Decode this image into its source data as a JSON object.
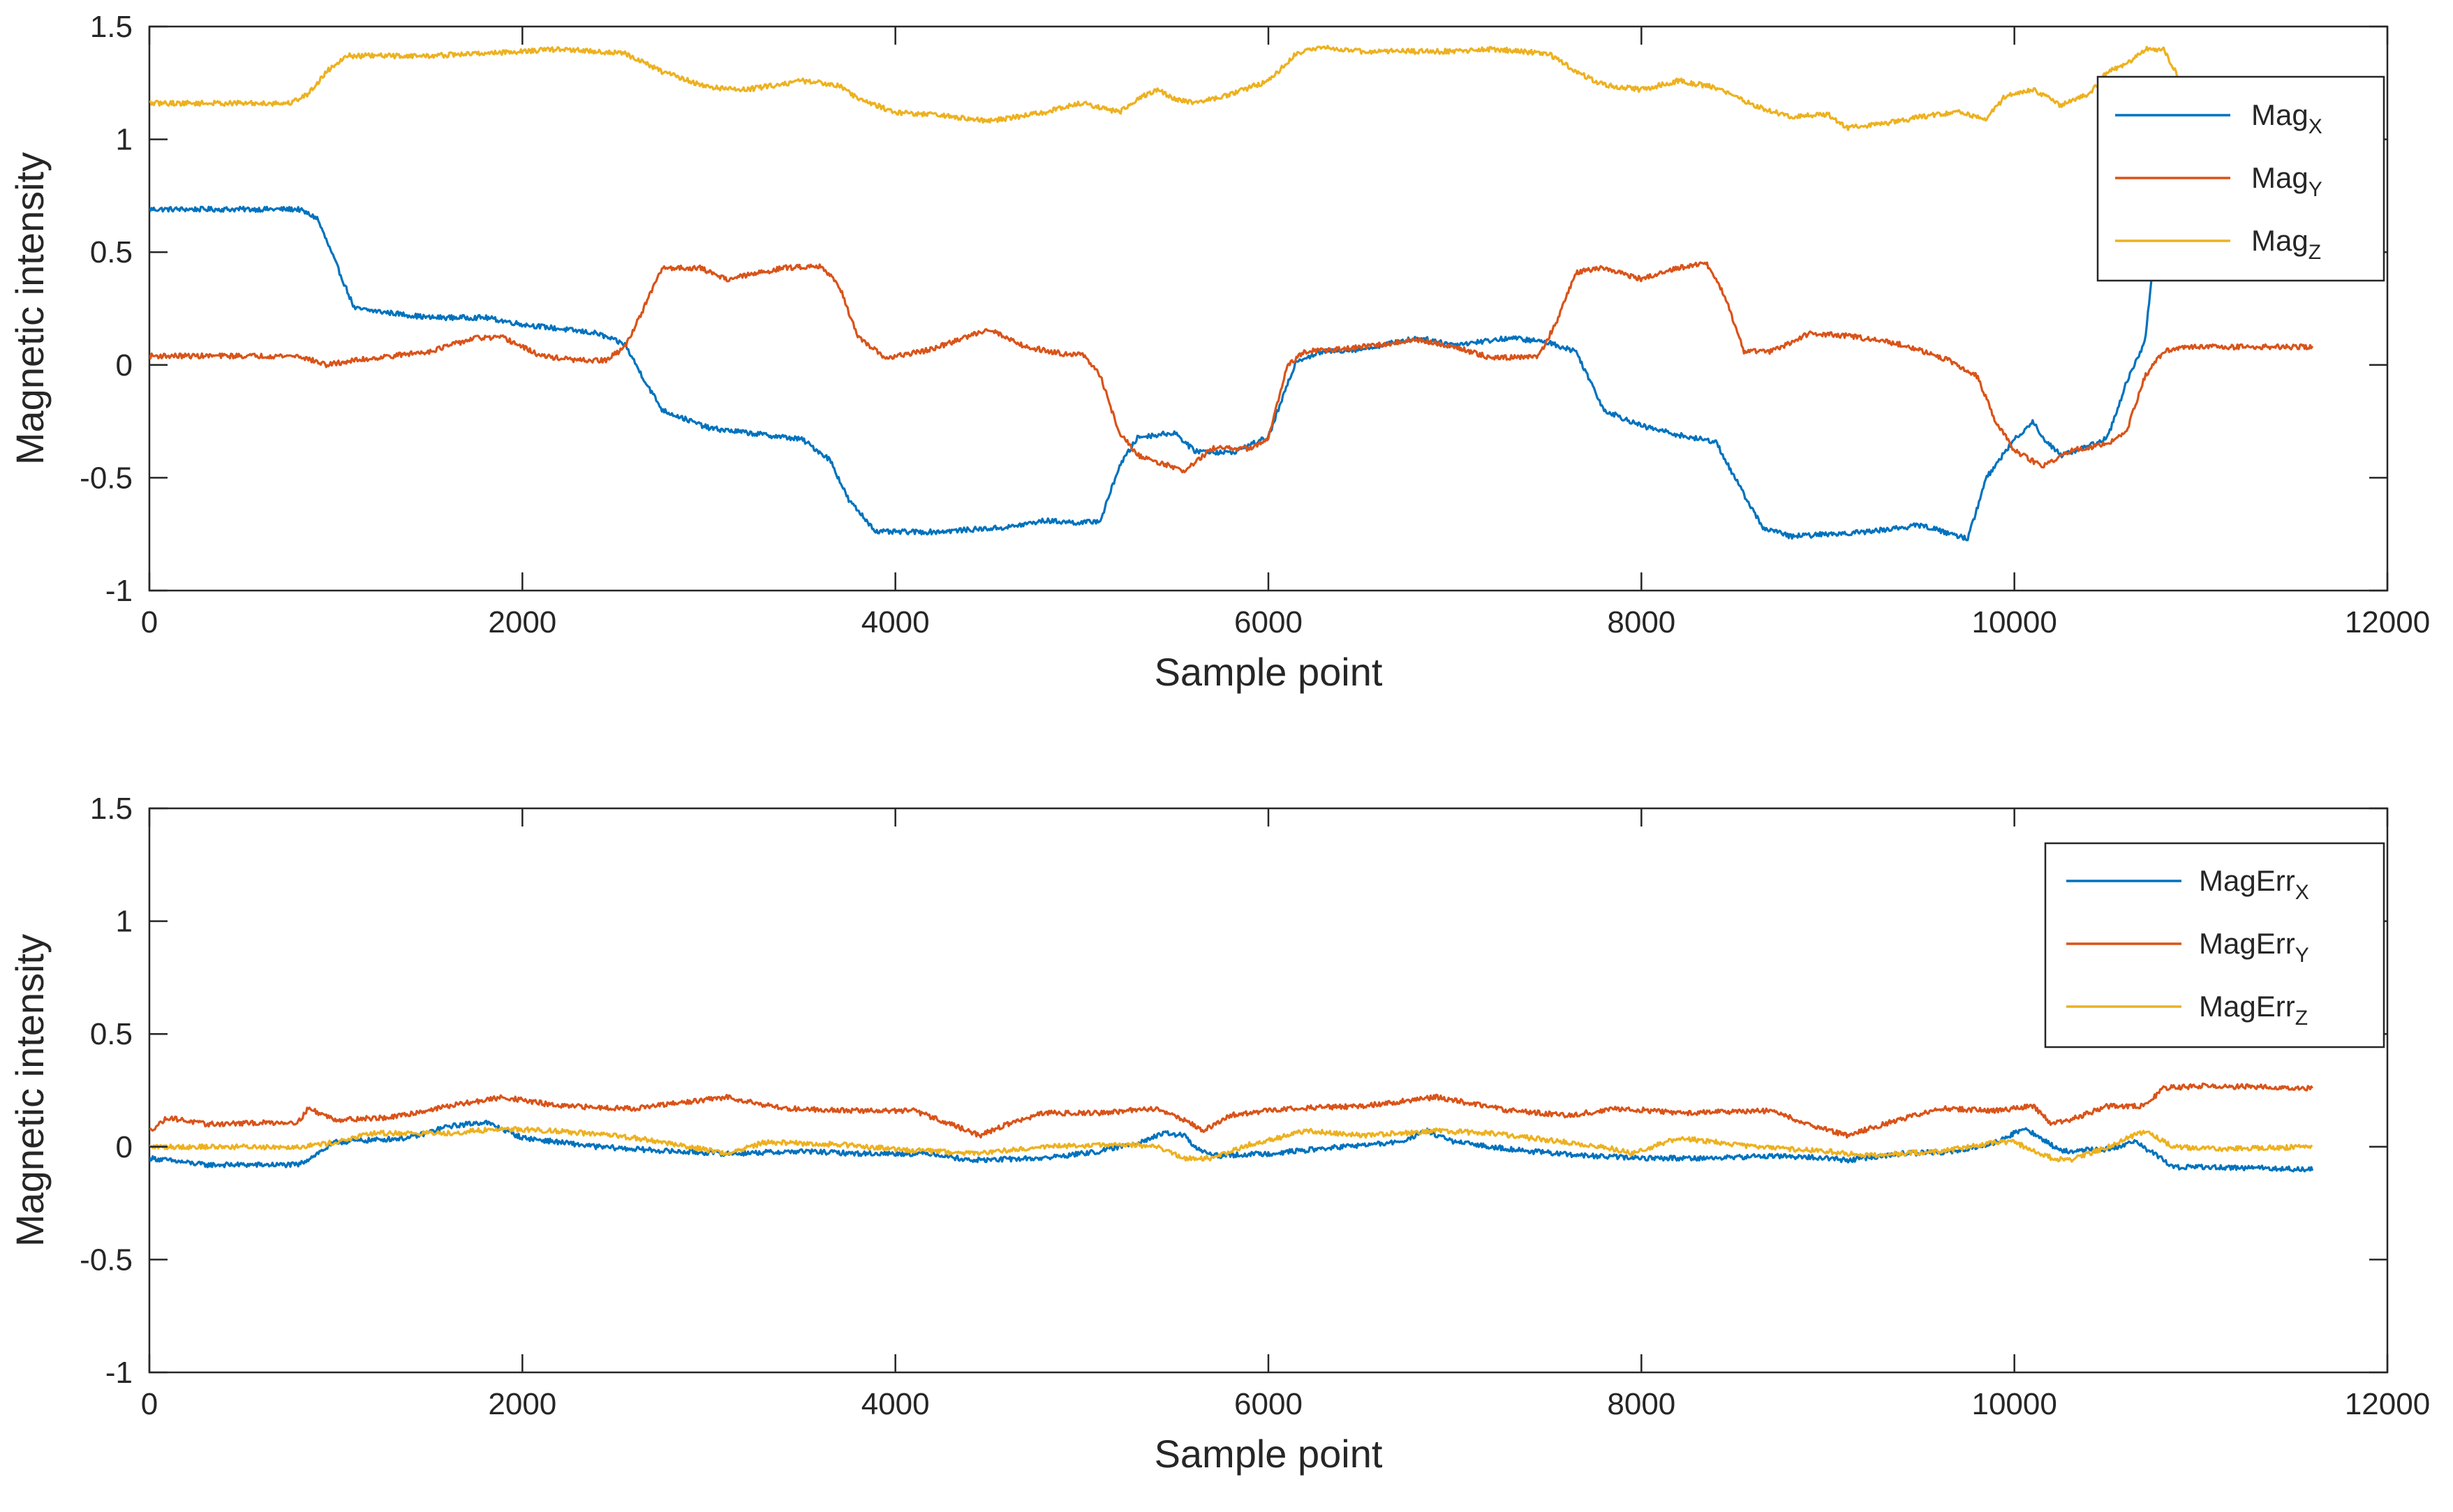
{
  "chart_data": [
    {
      "type": "line",
      "title": "",
      "xlabel": "Sample point",
      "ylabel": "Magnetic intensity",
      "xlim": [
        0,
        12000
      ],
      "ylim": [
        -1,
        1.5
      ],
      "xticks": [
        0,
        2000,
        4000,
        6000,
        8000,
        10000,
        12000
      ],
      "xtick_labels": [
        "0",
        "2000",
        "4000",
        "6000",
        "8000",
        "10000",
        "12000"
      ],
      "yticks": [
        -1,
        -0.5,
        0,
        0.5,
        1,
        1.5
      ],
      "ytick_labels": [
        "-1",
        "-0.5",
        "0",
        "0.5",
        "1",
        "1.5"
      ],
      "grid": false,
      "legend_position": "top-right",
      "series": [
        {
          "name": "MagX",
          "label_base": "Mag",
          "label_sub": "X",
          "color": "#0072BD",
          "x": [
            0,
            800,
            900,
            1000,
            1100,
            1500,
            1800,
            2000,
            2400,
            2550,
            2650,
            2750,
            3000,
            3200,
            3500,
            3650,
            3750,
            3900,
            4200,
            4600,
            4800,
            5000,
            5100,
            5200,
            5300,
            5500,
            5600,
            5800,
            6000,
            6150,
            6300,
            6500,
            6800,
            7000,
            7300,
            7500,
            7650,
            7800,
            8000,
            8250,
            8400,
            8500,
            8650,
            8800,
            9000,
            9200,
            9500,
            9750,
            9850,
            10000,
            10100,
            10150,
            10250,
            10400,
            10500,
            10600,
            10700,
            10750
          ],
          "y": [
            0.69,
            0.69,
            0.65,
            0.45,
            0.25,
            0.21,
            0.21,
            0.18,
            0.14,
            0.09,
            -0.06,
            -0.2,
            -0.28,
            -0.3,
            -0.33,
            -0.42,
            -0.6,
            -0.74,
            -0.74,
            -0.72,
            -0.69,
            -0.7,
            -0.69,
            -0.45,
            -0.32,
            -0.3,
            -0.38,
            -0.39,
            -0.32,
            0.02,
            0.06,
            0.07,
            0.12,
            0.09,
            0.12,
            0.1,
            0.06,
            -0.2,
            -0.27,
            -0.32,
            -0.34,
            -0.5,
            -0.72,
            -0.76,
            -0.75,
            -0.74,
            -0.71,
            -0.77,
            -0.5,
            -0.33,
            -0.25,
            -0.32,
            -0.4,
            -0.36,
            -0.32,
            -0.08,
            0.1,
            0.5
          ]
        },
        {
          "name": "MagY",
          "label_base": "Mag",
          "label_sub": "Y",
          "color": "#D95319",
          "x": [
            0,
            800,
            950,
            1100,
            1500,
            1750,
            1900,
            2100,
            2300,
            2450,
            2550,
            2650,
            2750,
            2950,
            3100,
            3400,
            3600,
            3700,
            3800,
            3950,
            4200,
            4500,
            4700,
            4900,
            5000,
            5100,
            5200,
            5300,
            5550,
            5700,
            5900,
            6000,
            6100,
            6200,
            6400,
            6800,
            7000,
            7200,
            7450,
            7550,
            7650,
            7800,
            8000,
            8200,
            8350,
            8450,
            8550,
            8700,
            8900,
            9100,
            9400,
            9650,
            9800,
            9900,
            10000,
            10150,
            10300,
            10500,
            10600,
            10700,
            10800,
            10900,
            11600
          ],
          "y": [
            0.04,
            0.04,
            0.0,
            0.02,
            0.06,
            0.12,
            0.12,
            0.04,
            0.02,
            0.02,
            0.08,
            0.25,
            0.43,
            0.43,
            0.38,
            0.43,
            0.44,
            0.35,
            0.12,
            0.03,
            0.07,
            0.16,
            0.08,
            0.05,
            0.05,
            -0.05,
            -0.3,
            -0.4,
            -0.47,
            -0.37,
            -0.37,
            -0.33,
            0.0,
            0.06,
            0.07,
            0.11,
            0.08,
            0.03,
            0.04,
            0.2,
            0.41,
            0.43,
            0.38,
            0.43,
            0.45,
            0.3,
            0.06,
            0.06,
            0.14,
            0.13,
            0.09,
            0.02,
            -0.05,
            -0.25,
            -0.38,
            -0.45,
            -0.38,
            -0.35,
            -0.3,
            -0.05,
            0.06,
            0.08,
            0.08
          ]
        },
        {
          "name": "MagZ",
          "label_base": "Mag",
          "label_sub": "Z",
          "color": "#EDB120",
          "x": [
            0,
            750,
            850,
            950,
            1050,
            1500,
            2000,
            2200,
            2550,
            2750,
            3000,
            3200,
            3500,
            3700,
            3800,
            4000,
            4200,
            4500,
            4800,
            5000,
            5200,
            5300,
            5400,
            5500,
            5600,
            5800,
            6000,
            6150,
            6300,
            6500,
            7000,
            7200,
            7500,
            7650,
            7800,
            8000,
            8200,
            8400,
            8600,
            8800,
            9000,
            9100,
            9300,
            9500,
            9700,
            9850,
            9950,
            10100,
            10250,
            10400,
            10500,
            10600,
            10700,
            10800,
            10900
          ],
          "y": [
            1.16,
            1.16,
            1.2,
            1.3,
            1.37,
            1.37,
            1.39,
            1.4,
            1.38,
            1.3,
            1.23,
            1.22,
            1.26,
            1.24,
            1.18,
            1.12,
            1.11,
            1.08,
            1.12,
            1.16,
            1.12,
            1.18,
            1.22,
            1.18,
            1.16,
            1.2,
            1.26,
            1.38,
            1.41,
            1.39,
            1.39,
            1.4,
            1.38,
            1.3,
            1.24,
            1.22,
            1.26,
            1.23,
            1.15,
            1.1,
            1.11,
            1.05,
            1.07,
            1.1,
            1.12,
            1.09,
            1.19,
            1.22,
            1.15,
            1.2,
            1.3,
            1.33,
            1.4,
            1.4,
            1.24
          ]
        }
      ]
    },
    {
      "type": "line",
      "title": "",
      "xlabel": "Sample point",
      "ylabel": "Magnetic intensity",
      "xlim": [
        0,
        12000
      ],
      "ylim": [
        -1,
        1.5
      ],
      "xticks": [
        0,
        2000,
        4000,
        6000,
        8000,
        10000,
        12000
      ],
      "xtick_labels": [
        "0",
        "2000",
        "4000",
        "6000",
        "8000",
        "10000",
        "12000"
      ],
      "yticks": [
        -1,
        -0.5,
        0,
        0.5,
        1,
        1.5
      ],
      "ytick_labels": [
        "-1",
        "-0.5",
        "0",
        "0.5",
        "1",
        "1.5"
      ],
      "grid": false,
      "legend_position": "top-right",
      "series": [
        {
          "name": "MagErrX",
          "label_base": "MagErr",
          "label_sub": "X",
          "color": "#0072BD",
          "x": [
            0,
            300,
            800,
            1000,
            1400,
            1600,
            1800,
            2000,
            2400,
            2800,
            3100,
            3500,
            3800,
            4200,
            4400,
            4800,
            5100,
            5300,
            5450,
            5550,
            5600,
            5700,
            6000,
            6400,
            6700,
            6850,
            7000,
            7400,
            7700,
            8000,
            8400,
            8700,
            9000,
            9100,
            9400,
            9700,
            9900,
            10050,
            10100,
            10250,
            10500,
            10650,
            10750,
            10850,
            11100,
            11600
          ],
          "y": [
            -0.05,
            -0.08,
            -0.08,
            0.02,
            0.04,
            0.09,
            0.11,
            0.04,
            0.0,
            -0.02,
            -0.03,
            -0.02,
            -0.03,
            -0.03,
            -0.06,
            -0.05,
            -0.02,
            0.02,
            0.06,
            0.05,
            0.0,
            -0.04,
            -0.03,
            0.0,
            0.02,
            0.07,
            0.02,
            -0.02,
            -0.04,
            -0.05,
            -0.05,
            -0.04,
            -0.05,
            -0.06,
            -0.03,
            -0.02,
            0.02,
            0.08,
            0.06,
            -0.02,
            -0.01,
            0.02,
            -0.03,
            -0.09,
            -0.09,
            -0.1
          ]
        },
        {
          "name": "MagErrY",
          "label_base": "MagErr",
          "label_sub": "Y",
          "color": "#D95319",
          "x": [
            0,
            100,
            300,
            800,
            850,
            1000,
            1300,
            1600,
            1900,
            2200,
            2600,
            3100,
            3400,
            3800,
            4100,
            4300,
            4450,
            4600,
            4800,
            5100,
            5400,
            5550,
            5650,
            5800,
            6100,
            6500,
            6900,
            7300,
            7600,
            7900,
            8200,
            8700,
            8900,
            9100,
            9300,
            9600,
            9900,
            10100,
            10200,
            10300,
            10500,
            10700,
            10800,
            11000,
            11600
          ],
          "y": [
            0.07,
            0.13,
            0.1,
            0.11,
            0.17,
            0.12,
            0.13,
            0.18,
            0.22,
            0.18,
            0.17,
            0.22,
            0.17,
            0.16,
            0.16,
            0.1,
            0.05,
            0.1,
            0.15,
            0.15,
            0.17,
            0.12,
            0.07,
            0.14,
            0.17,
            0.18,
            0.22,
            0.16,
            0.14,
            0.17,
            0.15,
            0.16,
            0.1,
            0.05,
            0.1,
            0.17,
            0.16,
            0.18,
            0.1,
            0.12,
            0.18,
            0.18,
            0.26,
            0.27,
            0.26
          ]
        },
        {
          "name": "MagErrZ",
          "label_base": "MagErr",
          "label_sub": "Z",
          "color": "#EDB120",
          "x": [
            0,
            800,
            1000,
            1200,
            1600,
            1900,
            2200,
            2600,
            2900,
            3100,
            3300,
            3700,
            4000,
            4400,
            4800,
            5200,
            5400,
            5550,
            5700,
            5900,
            6200,
            6500,
            6900,
            7200,
            7500,
            7800,
            7950,
            8200,
            8600,
            9000,
            9200,
            9600,
            9900,
            10000,
            10200,
            10300,
            10500,
            10700,
            10850,
            11100,
            11600
          ],
          "y": [
            0.0,
            0.0,
            0.02,
            0.06,
            0.06,
            0.08,
            0.07,
            0.04,
            0.0,
            -0.03,
            0.02,
            0.01,
            -0.01,
            -0.03,
            0.0,
            0.01,
            0.0,
            -0.05,
            -0.05,
            0.01,
            0.07,
            0.05,
            0.07,
            0.06,
            0.03,
            0.0,
            -0.03,
            0.04,
            0.0,
            -0.02,
            -0.04,
            -0.02,
            0.02,
            0.02,
            -0.05,
            -0.06,
            0.0,
            0.07,
            0.0,
            -0.01,
            0.0
          ]
        }
      ]
    }
  ]
}
